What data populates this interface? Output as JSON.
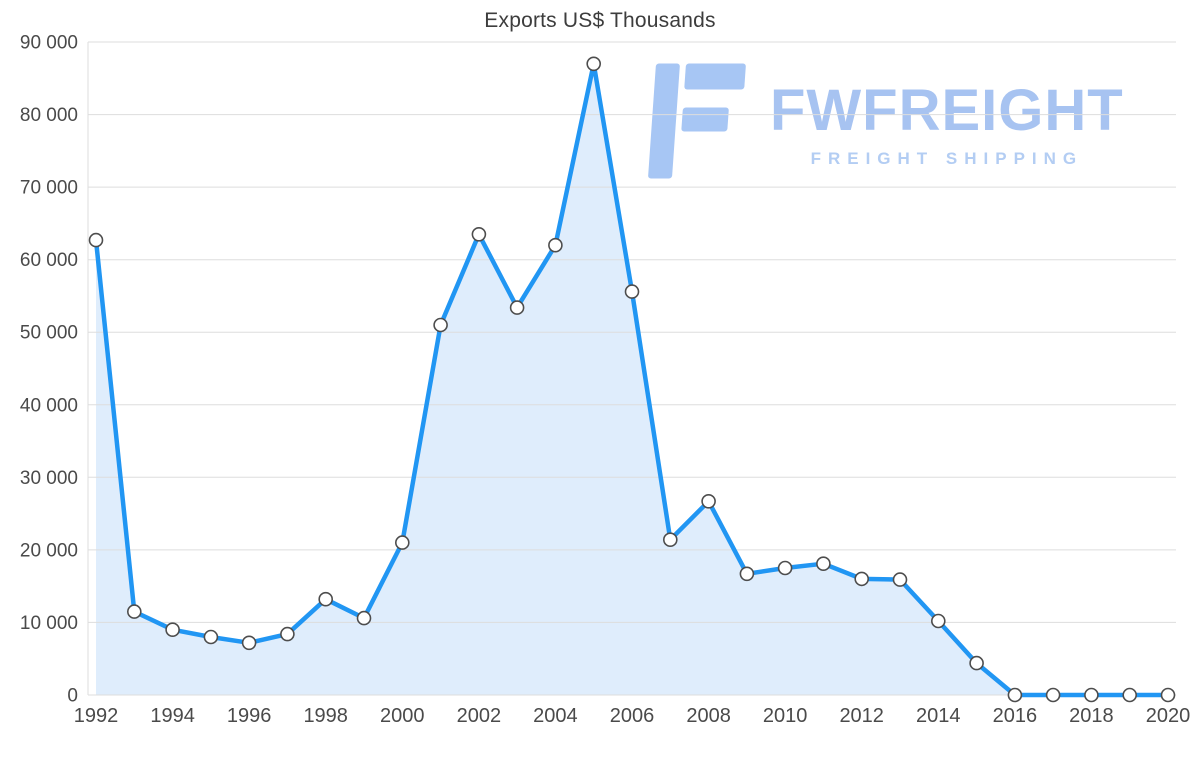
{
  "page": {
    "background": "#ffffff"
  },
  "chart_data": {
    "type": "area",
    "title": "Exports US$ Thousands",
    "xlabel": "",
    "ylabel": "",
    "x": [
      1992,
      1993,
      1994,
      1995,
      1996,
      1997,
      1998,
      1999,
      2000,
      2001,
      2002,
      2003,
      2004,
      2005,
      2006,
      2007,
      2008,
      2009,
      2010,
      2011,
      2012,
      2013,
      2014,
      2015,
      2016,
      2017,
      2018,
      2019,
      2020
    ],
    "series": [
      {
        "name": "Exports US$ Thousands",
        "values": [
          62700,
          11500,
          9000,
          8000,
          7200,
          8400,
          13200,
          10600,
          21000,
          51000,
          63500,
          53400,
          62000,
          87000,
          55600,
          21400,
          26700,
          16700,
          17500,
          18100,
          16000,
          15900,
          10200,
          4400,
          0,
          0,
          0,
          0,
          0
        ]
      }
    ],
    "ylim": [
      0,
      90000
    ],
    "ytick_step": 10000,
    "ytick_labels": [
      "0",
      "10 000",
      "20 000",
      "30 000",
      "40 000",
      "50 000",
      "60 000",
      "70 000",
      "80 000",
      "90 000"
    ],
    "xtick_labels": [
      "1992",
      "1994",
      "1996",
      "1998",
      "2000",
      "2002",
      "2004",
      "2006",
      "2008",
      "2010",
      "2012",
      "2014",
      "2016",
      "2018",
      "2020"
    ],
    "grid": "horizontal",
    "legend": "none",
    "markers": "circle",
    "colors": {
      "line": "#2196f3",
      "fill": "#d9eafc",
      "marker_fill": "#ffffff",
      "marker_stroke": "#4d4d4d",
      "grid": "#dddddd",
      "axis": "#cccccc",
      "tick_text": "#4a4a4a",
      "title_text": "#3d3d3d"
    }
  },
  "logo": {
    "name": "FWFREIGHT",
    "tagline": "FREIGHT SHIPPING",
    "colors": {
      "glyph": "#a7c6f4",
      "name": "#a7c3f1",
      "tagline": "#b3cdf3"
    }
  }
}
